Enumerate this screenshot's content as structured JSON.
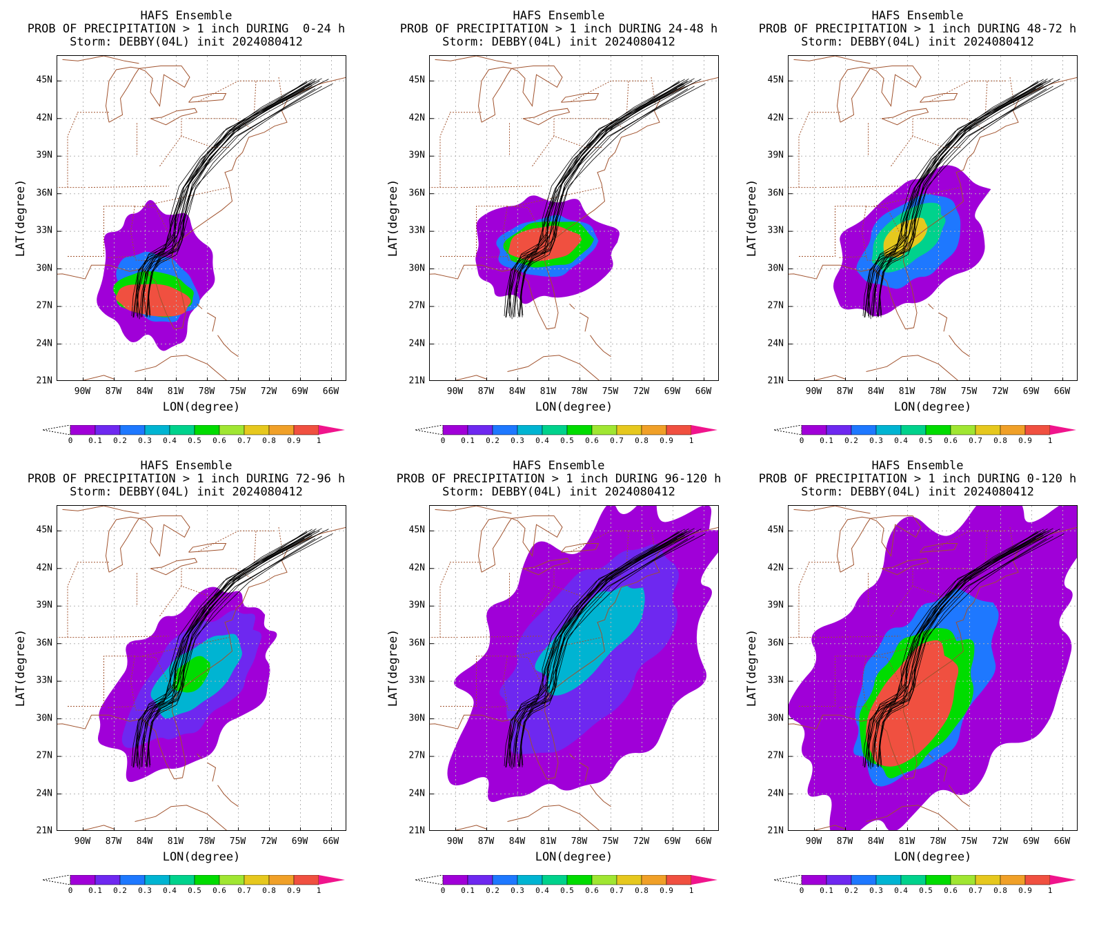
{
  "panels": [
    {
      "title1": "HAFS Ensemble",
      "title2": "PROB OF PRECIPITATION > 1 inch DURING  0-24 h",
      "title3": "Storm: DEBBY(04L) init 2024080412",
      "period": "0-24"
    },
    {
      "title1": "HAFS Ensemble",
      "title2": "PROB OF PRECIPITATION > 1 inch DURING 24-48 h",
      "title3": "Storm: DEBBY(04L) init 2024080412",
      "period": "24-48"
    },
    {
      "title1": "HAFS Ensemble",
      "title2": "PROB OF PRECIPITATION > 1 inch DURING 48-72 h",
      "title3": "Storm: DEBBY(04L) init 2024080412",
      "period": "48-72"
    },
    {
      "title1": "HAFS Ensemble",
      "title2": "PROB OF PRECIPITATION > 1 inch DURING 72-96 h",
      "title3": "Storm: DEBBY(04L) init 2024080412",
      "period": "72-96"
    },
    {
      "title1": "HAFS Ensemble",
      "title2": "PROB OF PRECIPITATION > 1 inch DURING 96-120 h",
      "title3": "Storm: DEBBY(04L) init 2024080412",
      "period": "96-120"
    },
    {
      "title1": "HAFS Ensemble",
      "title2": "PROB OF PRECIPITATION > 1 inch DURING 0-120 h",
      "title3": "Storm: DEBBY(04L) init 2024080412",
      "period": "0-120"
    }
  ],
  "axes": {
    "xlabel": "LON(degree)",
    "ylabel": "LAT(degree)",
    "lat_ticks": [
      "45N",
      "42N",
      "39N",
      "36N",
      "33N",
      "30N",
      "27N",
      "24N",
      "21N"
    ],
    "lat_values": [
      45,
      42,
      39,
      36,
      33,
      30,
      27,
      24,
      21
    ],
    "lon_ticks": [
      "90W",
      "87W",
      "84W",
      "81W",
      "78W",
      "75W",
      "72W",
      "69W",
      "66W"
    ],
    "lon_values": [
      -90,
      -87,
      -84,
      -81,
      -78,
      -75,
      -72,
      -69,
      -66
    ],
    "lat_range": [
      21,
      47
    ],
    "lon_range": [
      -92.5,
      -64.5
    ]
  },
  "colorbar": {
    "labels": [
      "0",
      "0.1",
      "0.2",
      "0.3",
      "0.4",
      "0.5",
      "0.6",
      "0.7",
      "0.8",
      "0.9",
      "1"
    ],
    "colors": [
      "#a000d8",
      "#6e28f0",
      "#1e78ff",
      "#00b4d2",
      "#00d28c",
      "#00dc00",
      "#a0e632",
      "#e6c81e",
      "#f0a028",
      "#f05040"
    ],
    "over_color": "#f0148c"
  },
  "track_colors": {
    "tracks": "#000000",
    "borders": "#a0522d",
    "grid": "#b4b4b4"
  }
}
